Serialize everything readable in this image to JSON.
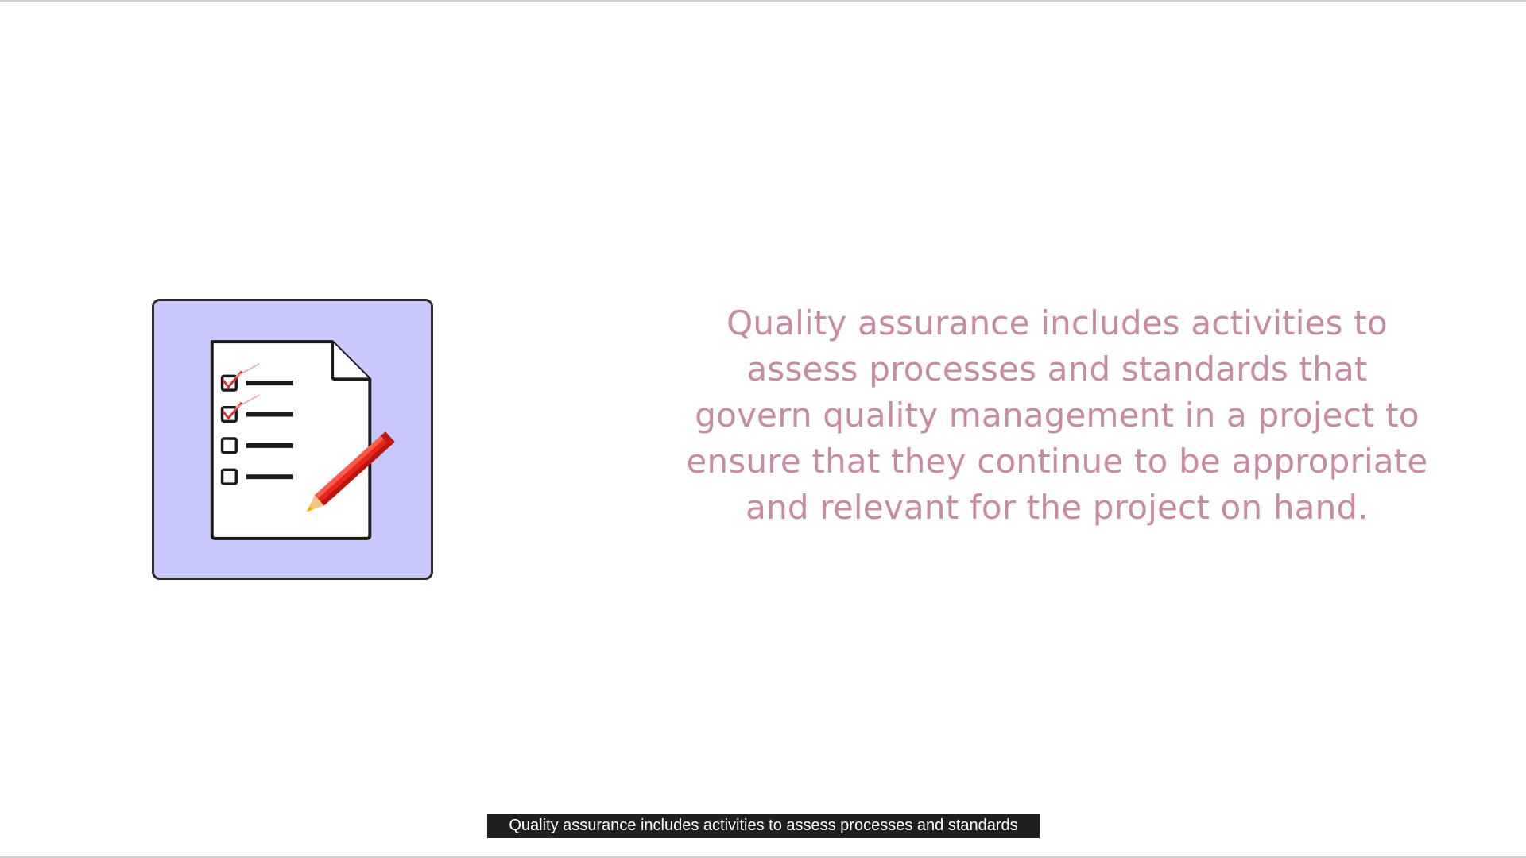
{
  "slide": {
    "icon": "checklist-with-pencil-icon",
    "tile_color": "#c8c8ff",
    "text": "Quality assurance includes activities to assess processes and standards that govern quality management in a project to ensure that they continue to be appropriate and relevant for the project on hand.",
    "text_color": "#c98aa4"
  },
  "caption": {
    "text": "Quality assurance includes activities to assess processes and standards"
  }
}
